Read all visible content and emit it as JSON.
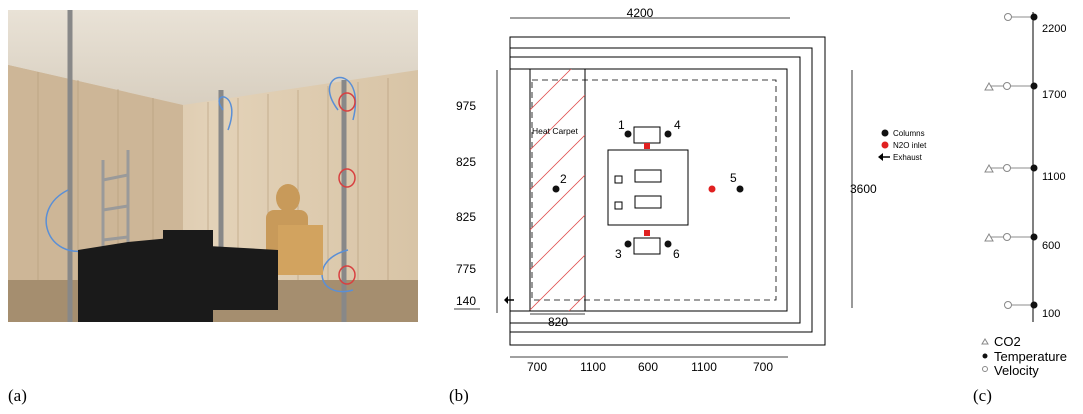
{
  "panels": {
    "a": {
      "label": "(a)"
    },
    "b": {
      "label": "(b)"
    },
    "c": {
      "label": "(c)"
    }
  },
  "plan": {
    "top_dim": "4200",
    "right_dim": "3600",
    "left_dims": [
      "975",
      "825",
      "825",
      "775",
      "140"
    ],
    "bottom_dims": [
      "700",
      "1100",
      "600",
      "1100",
      "700"
    ],
    "carpet_width": "820",
    "carpet_label": "Heat Carpet",
    "column_numbers": [
      "1",
      "2",
      "3",
      "4",
      "5",
      "6"
    ],
    "legend": {
      "columns": "Columns",
      "inlet": "N2O inlet",
      "exhaust": "Exhaust"
    },
    "colors": {
      "columns": "#111111",
      "inlet": "#e02020",
      "carpet_hatch": "#e05050"
    }
  },
  "column_profile": {
    "heights": [
      "2200",
      "1700",
      "1100",
      "600",
      "100"
    ],
    "legend": {
      "co2": "CO2",
      "temperature": "Temperature",
      "velocity": "Velocity"
    }
  }
}
